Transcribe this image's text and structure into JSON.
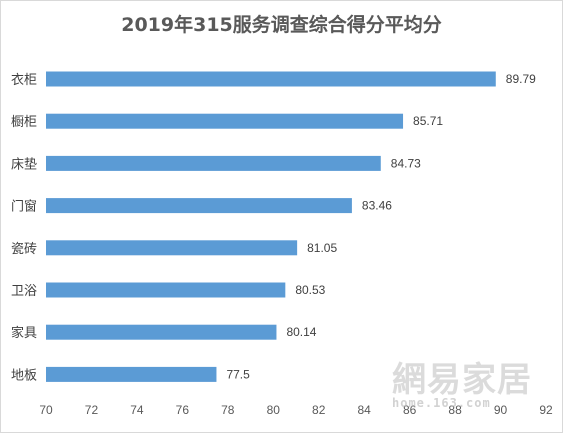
{
  "chart_data": {
    "type": "bar",
    "orientation": "horizontal",
    "title": "2019年315服务调查综合得分平均分",
    "categories": [
      "衣柜",
      "橱柜",
      "床垫",
      "门窗",
      "瓷砖",
      "卫浴",
      "家具",
      "地板"
    ],
    "values": [
      89.79,
      85.71,
      84.73,
      83.46,
      81.05,
      80.53,
      80.14,
      77.5
    ],
    "value_labels": [
      "89.79",
      "85.71",
      "84.73",
      "83.46",
      "81.05",
      "80.53",
      "80.14",
      "77.5"
    ],
    "xlim": [
      70,
      92
    ],
    "xticks": [
      70,
      72,
      74,
      76,
      78,
      80,
      82,
      84,
      86,
      88,
      90,
      92
    ],
    "grid": false,
    "legend": "none",
    "bar_color": "#5b9bd5"
  },
  "watermark": {
    "text": "網易家居",
    "url": "home.163.com"
  }
}
